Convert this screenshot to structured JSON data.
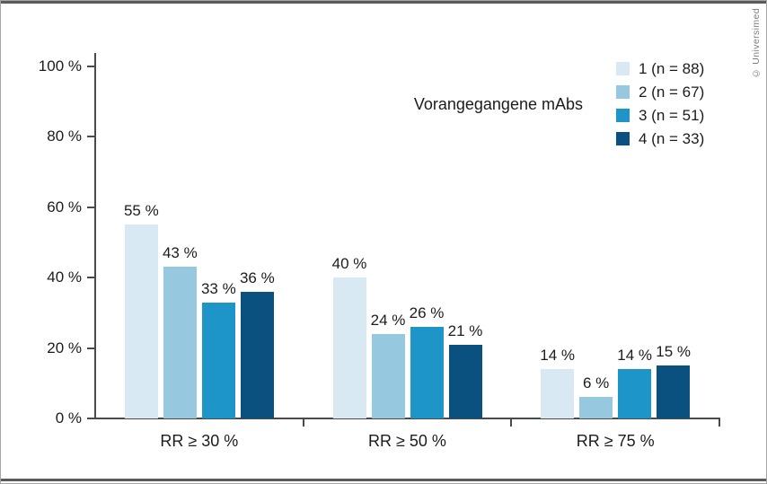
{
  "figure": {
    "copyright": "© Universimed",
    "legend_title": "Vorangegangene mAbs"
  },
  "chart_data": {
    "type": "bar",
    "title": "",
    "legend_title": "Vorangegangene mAbs",
    "legend_position": "top-right",
    "categories": [
      "RR ≥ 30 %",
      "RR ≥ 50 %",
      "RR ≥ 75 %"
    ],
    "series": [
      {
        "name": "1 (n = 88)",
        "color": "#d8e9f4",
        "values": [
          55,
          40,
          14
        ]
      },
      {
        "name": "2 (n = 67)",
        "color": "#96c8df",
        "values": [
          43,
          24,
          6
        ]
      },
      {
        "name": "3 (n = 51)",
        "color": "#1e95c8",
        "values": [
          33,
          26,
          14
        ]
      },
      {
        "name": "4 (n = 33)",
        "color": "#0b5180",
        "values": [
          36,
          21,
          15
        ]
      }
    ],
    "xlabel": "",
    "ylabel": "",
    "ylim": [
      0,
      100
    ],
    "yticks": [
      0,
      20,
      40,
      60,
      80,
      100
    ],
    "ytick_suffix": " %",
    "value_label_suffix": " %",
    "grid": false,
    "axis_color": "#4a4a4a",
    "text_color": "#1c1c1c"
  }
}
